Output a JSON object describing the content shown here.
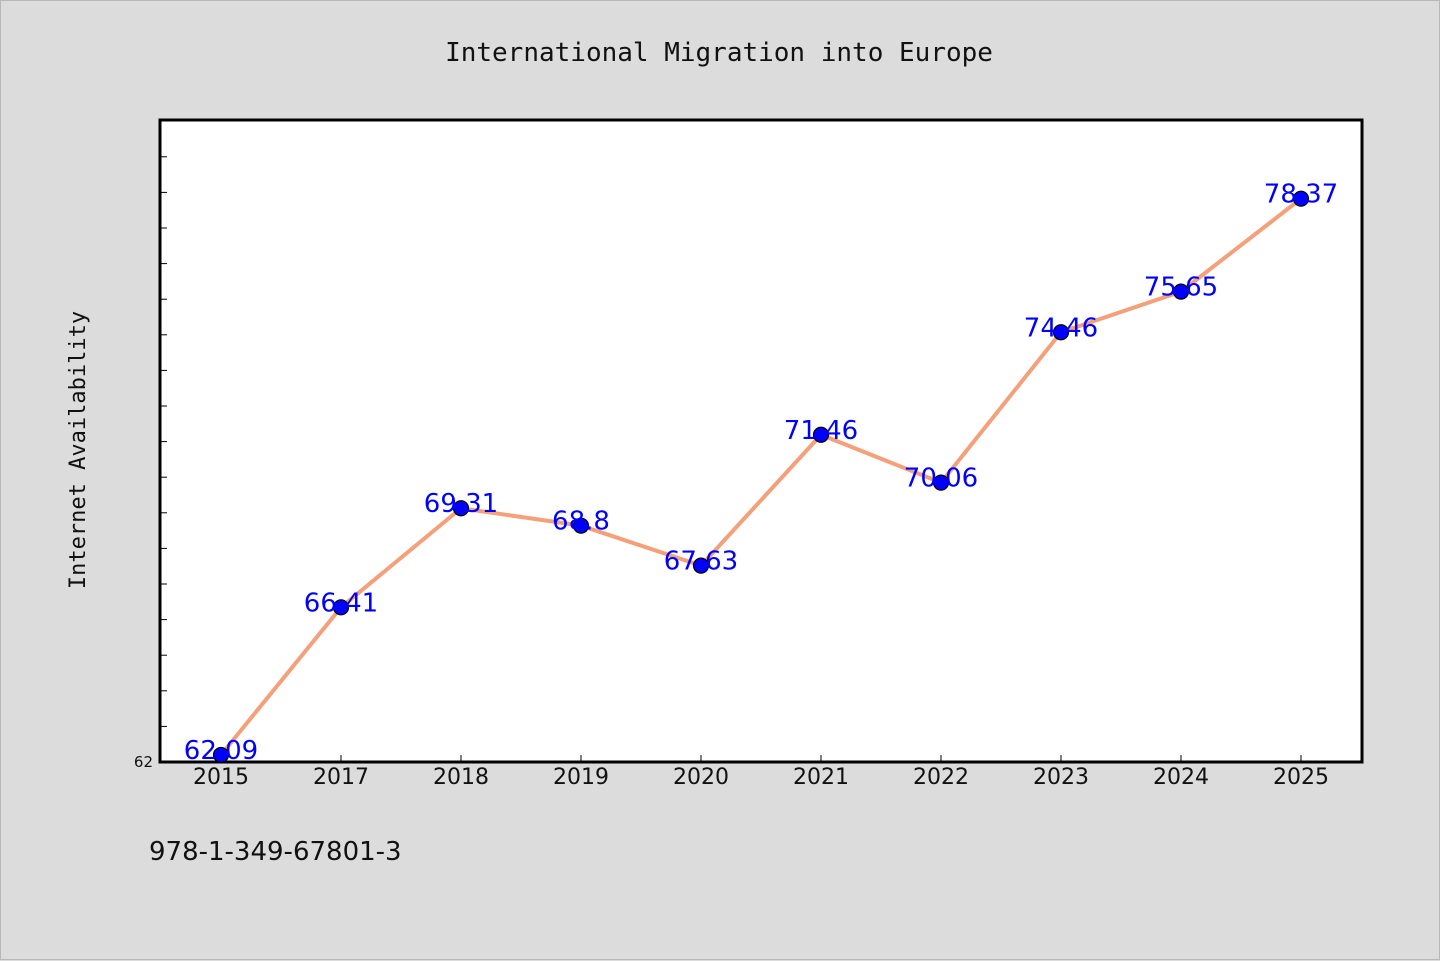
{
  "footer": {
    "isbn": "978-1-349-67801-3"
  },
  "colors": {
    "background": "#dcdcdc",
    "plot_background": "#ffffff",
    "line": "#f4a07a",
    "marker": "#0000ff",
    "data_label": "#0000ff"
  },
  "chart_data": {
    "type": "line",
    "title": "International Migration into Europe",
    "xlabel": "",
    "ylabel": "Internet Availability",
    "categories": [
      "2015",
      "2017",
      "2018",
      "2019",
      "2020",
      "2021",
      "2022",
      "2023",
      "2024",
      "2025"
    ],
    "series": [
      {
        "values": [
          62.09,
          66.41,
          69.31,
          68.8,
          67.63,
          71.46,
          70.06,
          74.46,
          75.65,
          78.37
        ],
        "labels": [
          "62.09",
          "66.41",
          "69.31",
          "68.8",
          "67.63",
          "71.46",
          "70.06",
          "74.46",
          "75.65",
          "78.37"
        ]
      }
    ],
    "ylim": [
      62,
      80
    ],
    "y_tick_labels": [
      "62"
    ],
    "grid": false,
    "legend": "none"
  }
}
